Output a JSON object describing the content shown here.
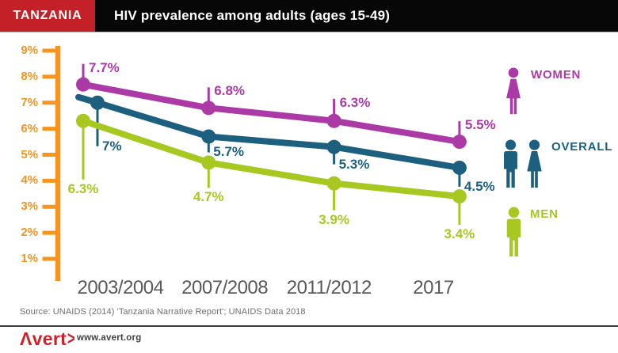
{
  "header": {
    "country": "TANZANIA",
    "title": "HIV prevalence among adults (ages 15-49)",
    "badge_color": "#c32127",
    "bar_color": "#070707"
  },
  "chart_data": {
    "type": "line",
    "title": "HIV prevalence among adults (ages 15-49)",
    "categories": [
      "2003/2004",
      "2007/2008",
      "2011/2012",
      "2017"
    ],
    "series": [
      {
        "name": "WOMEN",
        "color": "#ab3aa7",
        "values": [
          7.7,
          6.8,
          6.3,
          5.5
        ],
        "labels": [
          "7.7%",
          "6.8%",
          "6.3%",
          "5.5%"
        ]
      },
      {
        "name": "OVERALL",
        "color": "#1d5f7e",
        "values": [
          7.0,
          5.7,
          5.3,
          4.5
        ],
        "labels": [
          "7%",
          "5.7%",
          "5.3%",
          "4.5%"
        ]
      },
      {
        "name": "MEN",
        "color": "#a6c820",
        "values": [
          6.3,
          4.7,
          3.9,
          3.4
        ],
        "labels": [
          "6.3%",
          "4.7%",
          "3.9%",
          "3.4%"
        ]
      }
    ],
    "y_axis": {
      "ticks": [
        "9%",
        "8%",
        "7%",
        "6%",
        "5%",
        "4%",
        "3%",
        "2%",
        "1%"
      ],
      "min": 1,
      "max": 9,
      "unit": "%",
      "color": "#f7941e"
    },
    "grid": false,
    "legend_position": "right"
  },
  "legend": [
    {
      "label": "WOMEN",
      "color": "#ab3aa7",
      "icon": "woman-icon"
    },
    {
      "label": "OVERALL",
      "color": "#1d5f7e",
      "icon": "man-woman-icon"
    },
    {
      "label": "MEN",
      "color": "#a6c820",
      "icon": "man-icon"
    }
  ],
  "source": "Source: UNAIDS (2014) 'Tanzania Narrative Report'; UNAIDS Data 2018",
  "footer": {
    "logo": "Λvert",
    "chevron": ">",
    "logo_color": "#d0202a",
    "url": "www.avert.org"
  }
}
